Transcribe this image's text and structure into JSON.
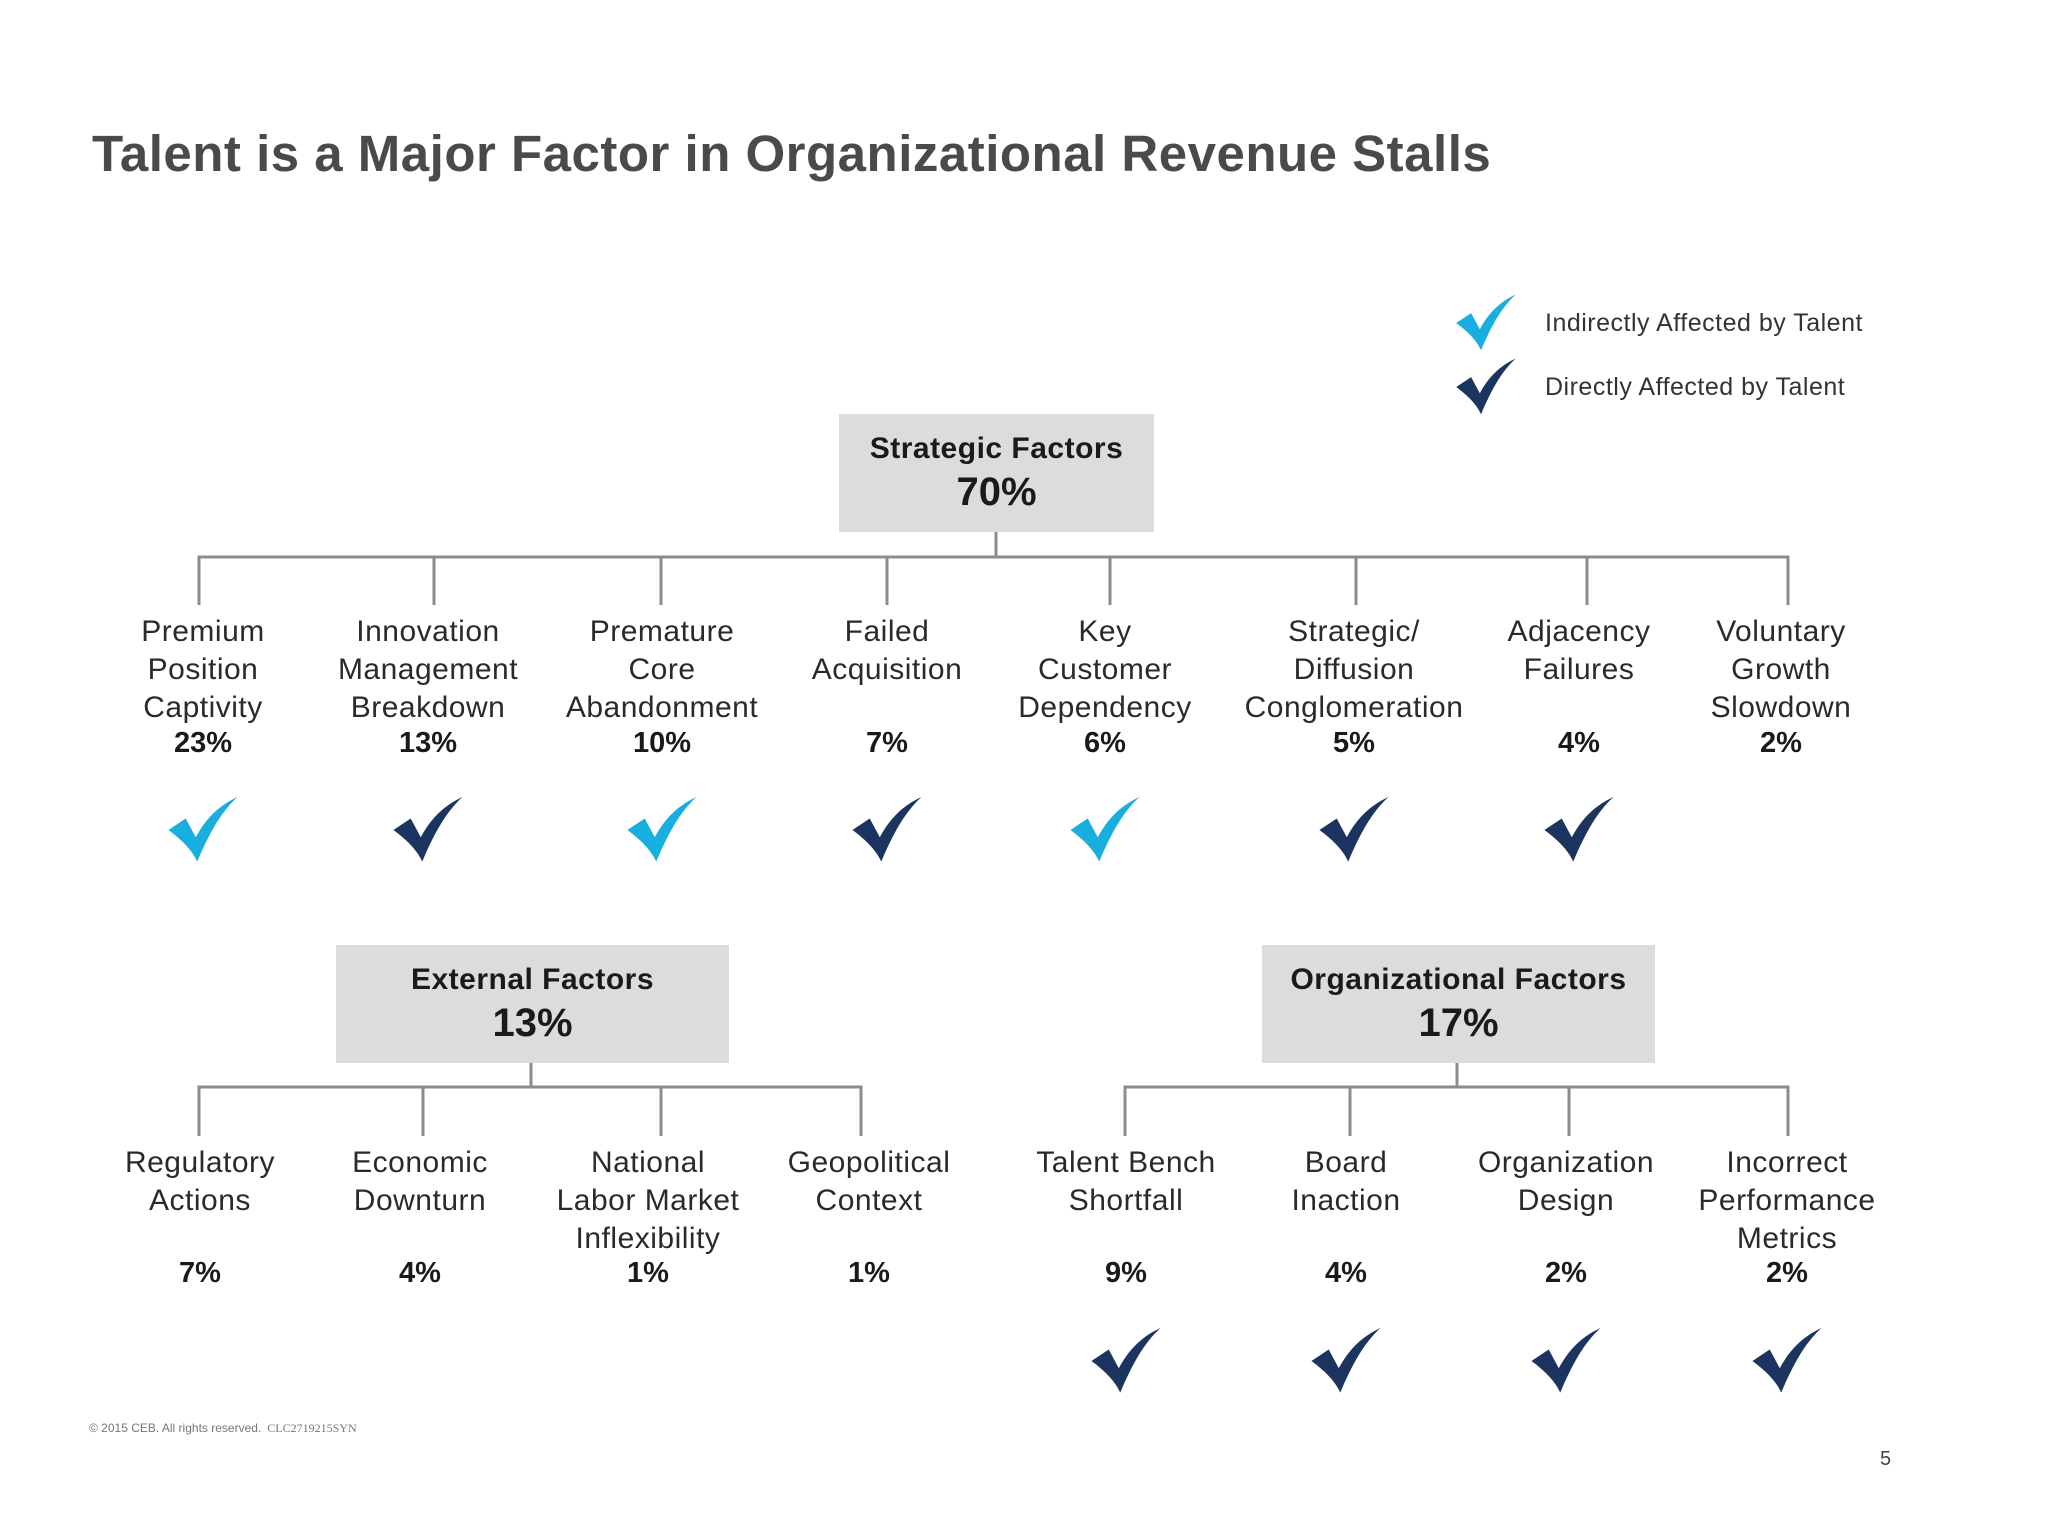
{
  "title": "Talent is a Major Factor in Organizational Revenue Stalls",
  "colors": {
    "indirect": "#19aee0",
    "direct": "#1b3560",
    "header_bg": "#dcdcdd",
    "line": "#8c8c8c"
  },
  "legend": [
    {
      "label": "Indirectly Affected by Talent",
      "type": "indirect",
      "icon": "check-icon"
    },
    {
      "label": "Directly Affected by Talent",
      "type": "direct",
      "icon": "check-icon"
    }
  ],
  "strategic": {
    "title": "Strategic Factors",
    "percent": "70%",
    "items": [
      {
        "label": "Premium\nPosition\nCaptivity",
        "percent": "23%",
        "talent": "indirect"
      },
      {
        "label": "Innovation\nManagement\nBreakdown",
        "percent": "13%",
        "talent": "direct"
      },
      {
        "label": "Premature\nCore\nAbandonment",
        "percent": "10%",
        "talent": "indirect"
      },
      {
        "label": "Failed\nAcquisition",
        "percent": "7%",
        "talent": "direct"
      },
      {
        "label": "Key\nCustomer\nDependency",
        "percent": "6%",
        "talent": "indirect"
      },
      {
        "label": "Strategic/\nDiffusion\nConglomeration",
        "percent": "5%",
        "talent": "direct"
      },
      {
        "label": "Adjacency\nFailures",
        "percent": "4%",
        "talent": "direct"
      },
      {
        "label": "Voluntary\nGrowth\nSlowdown",
        "percent": "2%",
        "talent": "none"
      }
    ]
  },
  "external": {
    "title": "External Factors",
    "percent": "13%",
    "items": [
      {
        "label": "Regulatory\nActions",
        "percent": "7%",
        "talent": "none"
      },
      {
        "label": "Economic\nDownturn",
        "percent": "4%",
        "talent": "none"
      },
      {
        "label": "National\nLabor Market\nInflexibility",
        "percent": "1%",
        "talent": "none"
      },
      {
        "label": "Geopolitical\nContext",
        "percent": "1%",
        "talent": "none"
      }
    ]
  },
  "organizational": {
    "title": "Organizational Factors",
    "percent": "17%",
    "items": [
      {
        "label": "Talent Bench\nShortfall",
        "percent": "9%",
        "talent": "direct"
      },
      {
        "label": "Board\nInaction",
        "percent": "4%",
        "talent": "direct"
      },
      {
        "label": "Organization\nDesign",
        "percent": "2%",
        "talent": "direct"
      },
      {
        "label": "Incorrect\nPerformance\nMetrics",
        "percent": "2%",
        "talent": "direct"
      }
    ]
  },
  "footer": {
    "copyright": "© 2015 CEB. All rights reserved.",
    "code": "CLC2719215SYN"
  },
  "page_number": "5"
}
